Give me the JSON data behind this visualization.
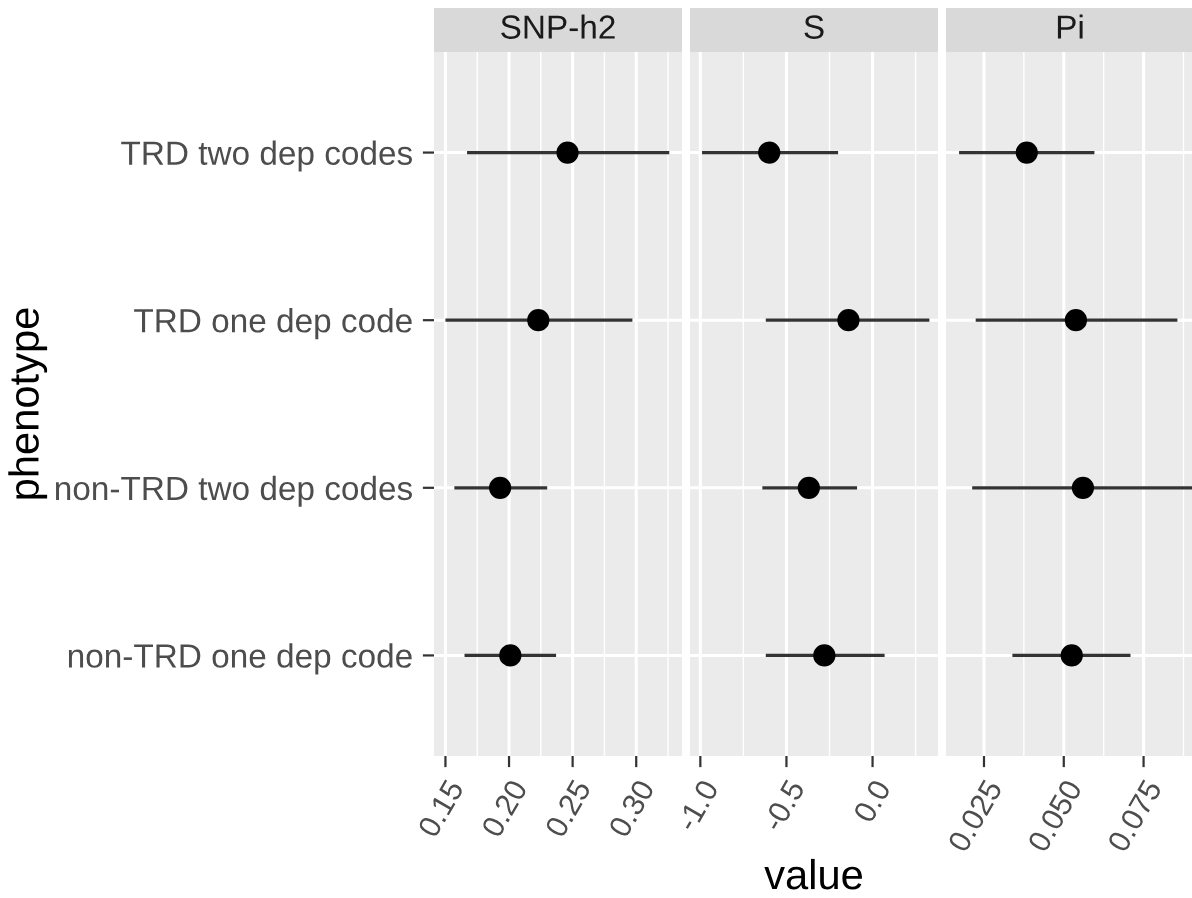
{
  "chart_data": [
    {
      "type": "scatter",
      "title": "SNP-h2",
      "ylabel": "phenotype",
      "orientation": "horizontal",
      "categories": [
        "TRD two dep codes",
        "TRD one dep code",
        "non-TRD two dep codes",
        "non-TRD one dep code"
      ],
      "values": [
        0.246,
        0.223,
        0.193,
        0.201
      ],
      "errors": [
        [
          0.167,
          0.326
        ],
        [
          0.15,
          0.297
        ],
        [
          0.157,
          0.23
        ],
        [
          0.165,
          0.237
        ]
      ],
      "color": "#000000",
      "xlim": [
        0.141,
        0.336
      ],
      "xticks": [
        {
          "value": 0.15,
          "label": "0.15"
        },
        {
          "value": 0.2,
          "label": "0.20"
        },
        {
          "value": 0.25,
          "label": "0.25"
        },
        {
          "value": 0.3,
          "label": "0.30"
        }
      ],
      "grid": true,
      "marker": "circle"
    },
    {
      "type": "scatter",
      "title": "S",
      "xlabel": "value",
      "orientation": "horizontal",
      "values": [
        -0.6,
        -0.14,
        -0.37,
        -0.28
      ],
      "errors": [
        [
          -0.99,
          -0.2
        ],
        [
          -0.62,
          0.33
        ],
        [
          -0.64,
          -0.09
        ],
        [
          -0.62,
          0.07
        ]
      ],
      "color": "#000000",
      "xlim": [
        -1.06,
        0.38
      ],
      "xticks": [
        {
          "value": -1.0,
          "label": "-1.0"
        },
        {
          "value": -0.5,
          "label": "-0.5"
        },
        {
          "value": 0.0,
          "label": "0.0"
        }
      ],
      "tick_labels": "x",
      "grid": true,
      "marker": "circle"
    },
    {
      "type": "scatter",
      "title": "Pi",
      "orientation": "horizontal",
      "values": [
        0.0384,
        0.0538,
        0.056,
        0.0525
      ],
      "errors": [
        [
          0.0172,
          0.0596
        ],
        [
          0.0224,
          0.0856
        ],
        [
          0.0213,
          0.0905
        ],
        [
          0.0339,
          0.0709
        ]
      ],
      "color": "#000000",
      "xlim": [
        0.0131,
        0.0908
      ],
      "xticks": [
        {
          "value": 0.025,
          "label": "0.025"
        },
        {
          "value": 0.05,
          "label": "0.050"
        },
        {
          "value": 0.075,
          "label": "0.075"
        }
      ],
      "tick_labels": "x",
      "grid": true,
      "marker": "circle"
    }
  ]
}
